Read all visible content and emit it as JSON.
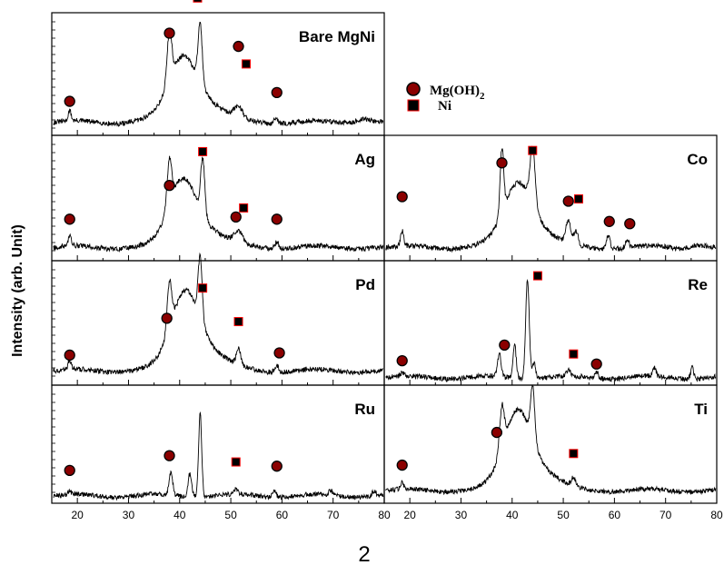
{
  "chart_data": {
    "type": "line",
    "ylabel": "Intensity  (arb. Unit)",
    "xlabel": "2",
    "x_ticks": [
      20,
      30,
      40,
      50,
      60,
      70,
      80
    ],
    "xlim": [
      15,
      80
    ],
    "legend": {
      "entries": [
        {
          "marker": "circle",
          "label": "Mg(OH)",
          "subscript": "2"
        },
        {
          "marker": "square",
          "label": "Ni"
        }
      ],
      "colors": {
        "fill": "#8b0000",
        "edge": "#000000",
        "square_edge": "#ff0000"
      }
    },
    "panels": [
      {
        "id": "bare-mgni",
        "label": "Bare MgNi",
        "background": 0.07,
        "peaks": [
          [
            18.5,
            0.09,
            0.3
          ],
          [
            38.0,
            0.45,
            0.45
          ],
          [
            40.5,
            0.38,
            2.5
          ],
          [
            44.0,
            0.55,
            0.4
          ],
          [
            42.5,
            0.25,
            4.5
          ],
          [
            51.5,
            0.1,
            0.8
          ],
          [
            58.8,
            0.06,
            0.4
          ],
          [
            76.0,
            0.04,
            1.5
          ]
        ],
        "markers": [
          {
            "type": "circle",
            "x": 18.5,
            "y": 0.26
          },
          {
            "type": "circle",
            "x": 38.0,
            "y": 0.88
          },
          {
            "type": "square",
            "x": 43.5,
            "y": 1.2
          },
          {
            "type": "circle",
            "x": 51.5,
            "y": 0.76
          },
          {
            "type": "square",
            "x": 53.0,
            "y": 0.6
          },
          {
            "type": "circle",
            "x": 59.0,
            "y": 0.34
          }
        ]
      },
      {
        "id": "ag",
        "label": "Ag",
        "background": 0.07,
        "peaks": [
          [
            18.5,
            0.09,
            0.3
          ],
          [
            38.0,
            0.4,
            0.45
          ],
          [
            40.5,
            0.45,
            2.5
          ],
          [
            44.5,
            0.5,
            0.4
          ],
          [
            43.0,
            0.2,
            4.5
          ],
          [
            51.5,
            0.1,
            0.8
          ],
          [
            59.0,
            0.06,
            0.4
          ]
        ],
        "markers": [
          {
            "type": "circle",
            "x": 18.5,
            "y": 0.32
          },
          {
            "type": "circle",
            "x": 38.0,
            "y": 0.62
          },
          {
            "type": "square",
            "x": 44.5,
            "y": 0.92
          },
          {
            "type": "square",
            "x": 52.5,
            "y": 0.42
          },
          {
            "type": "circle",
            "x": 51.0,
            "y": 0.34
          },
          {
            "type": "circle",
            "x": 59.0,
            "y": 0.32
          }
        ]
      },
      {
        "id": "co",
        "label": "Co",
        "background": 0.07,
        "peaks": [
          [
            18.5,
            0.13,
            0.3
          ],
          [
            38.0,
            0.58,
            0.35
          ],
          [
            41.0,
            0.35,
            2.5
          ],
          [
            44.0,
            0.5,
            0.5
          ],
          [
            42.5,
            0.25,
            4.0
          ],
          [
            51.0,
            0.2,
            0.5
          ],
          [
            52.5,
            0.12,
            0.4
          ],
          [
            58.8,
            0.12,
            0.35
          ],
          [
            62.5,
            0.07,
            0.35
          ],
          [
            76.0,
            0.03,
            1.5
          ]
        ],
        "markers": [
          {
            "type": "circle",
            "x": 18.5,
            "y": 0.52
          },
          {
            "type": "circle",
            "x": 38.0,
            "y": 0.82
          },
          {
            "type": "square",
            "x": 44.0,
            "y": 0.93
          },
          {
            "type": "circle",
            "x": 51.0,
            "y": 0.48
          },
          {
            "type": "square",
            "x": 53.0,
            "y": 0.5
          },
          {
            "type": "circle",
            "x": 59.0,
            "y": 0.3
          },
          {
            "type": "circle",
            "x": 63.0,
            "y": 0.28
          }
        ]
      },
      {
        "id": "pd",
        "label": "Pd",
        "background": 0.08,
        "peaks": [
          [
            18.5,
            0.08,
            0.3
          ],
          [
            38.0,
            0.42,
            0.45
          ],
          [
            41.0,
            0.5,
            2.5
          ],
          [
            44.0,
            0.55,
            0.4
          ],
          [
            43.0,
            0.25,
            4.5
          ],
          [
            51.5,
            0.15,
            0.4
          ],
          [
            59.0,
            0.06,
            0.4
          ]
        ],
        "markers": [
          {
            "type": "circle",
            "x": 18.5,
            "y": 0.22
          },
          {
            "type": "circle",
            "x": 37.5,
            "y": 0.55
          },
          {
            "type": "square",
            "x": 44.5,
            "y": 0.82
          },
          {
            "type": "square",
            "x": 51.5,
            "y": 0.52
          },
          {
            "type": "circle",
            "x": 59.5,
            "y": 0.24
          }
        ]
      },
      {
        "id": "re",
        "label": "Re",
        "background": 0.02,
        "peaks": [
          [
            18.5,
            0.03,
            0.3
          ],
          [
            37.5,
            0.2,
            0.35
          ],
          [
            40.5,
            0.3,
            0.3
          ],
          [
            43.0,
            0.9,
            0.35
          ],
          [
            44.3,
            0.15,
            0.3
          ],
          [
            51.0,
            0.05,
            0.4
          ],
          [
            56.5,
            0.06,
            0.35
          ],
          [
            67.8,
            0.08,
            0.3
          ],
          [
            75.2,
            0.1,
            0.3
          ]
        ],
        "markers": [
          {
            "type": "circle",
            "x": 18.5,
            "y": 0.17
          },
          {
            "type": "circle",
            "x": 38.5,
            "y": 0.31
          },
          {
            "type": "square",
            "x": 45.0,
            "y": 0.93
          },
          {
            "type": "square",
            "x": 52.0,
            "y": 0.23
          },
          {
            "type": "circle",
            "x": 56.5,
            "y": 0.14
          }
        ]
      },
      {
        "id": "ru",
        "label": "Ru",
        "background": 0.02,
        "peaks": [
          [
            18.5,
            0.03,
            0.3
          ],
          [
            38.3,
            0.22,
            0.35
          ],
          [
            42.0,
            0.22,
            0.35
          ],
          [
            44.0,
            0.8,
            0.3
          ],
          [
            51.0,
            0.05,
            0.4
          ],
          [
            58.5,
            0.07,
            0.35
          ],
          [
            69.5,
            0.05,
            0.35
          ],
          [
            78.0,
            0.05,
            0.35
          ]
        ],
        "markers": [
          {
            "type": "circle",
            "x": 18.5,
            "y": 0.26
          },
          {
            "type": "circle",
            "x": 38.0,
            "y": 0.4
          },
          {
            "type": "square",
            "x": 51.0,
            "y": 0.34
          },
          {
            "type": "circle",
            "x": 59.0,
            "y": 0.3
          }
        ]
      },
      {
        "id": "ti",
        "label": "Ti",
        "background": 0.07,
        "peaks": [
          [
            18.5,
            0.06,
            0.3
          ],
          [
            38.0,
            0.4,
            0.45
          ],
          [
            41.0,
            0.55,
            2.5
          ],
          [
            44.0,
            0.5,
            0.4
          ],
          [
            43.0,
            0.25,
            4.5
          ],
          [
            52.0,
            0.08,
            0.4
          ]
        ],
        "markers": [
          {
            "type": "circle",
            "x": 18.5,
            "y": 0.31
          },
          {
            "type": "circle",
            "x": 37.0,
            "y": 0.62
          },
          {
            "type": "square",
            "x": 52.0,
            "y": 0.42
          }
        ]
      }
    ]
  }
}
